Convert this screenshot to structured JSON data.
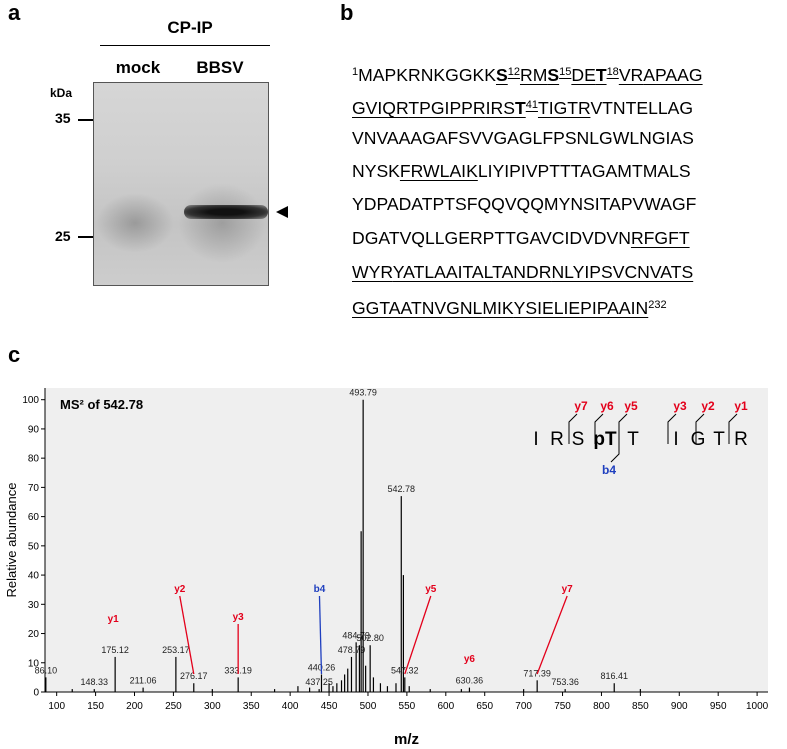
{
  "panel_a": {
    "label": "a",
    "group": "CP-IP",
    "lanes": [
      "mock",
      "BBSV"
    ],
    "unit": "kDa",
    "markers": [
      "35",
      "25"
    ]
  },
  "panel_b": {
    "label": "b",
    "lines": [
      [
        {
          "text": "1",
          "sup": true
        },
        {
          "text": "MAPKRNKGGKK"
        },
        {
          "text": "S",
          "bold": true,
          "underline": true
        },
        {
          "text": "12",
          "sup": true,
          "underline": true
        },
        {
          "text": "RM",
          "underline": true
        },
        {
          "text": "S",
          "bold": true,
          "underline": true
        },
        {
          "text": "15",
          "sup": true,
          "underline": true
        },
        {
          "text": "DE",
          "underline": true
        },
        {
          "text": "T",
          "bold": true,
          "underline": true
        },
        {
          "text": "18",
          "sup": true,
          "underline": true
        },
        {
          "text": "VR",
          "underline": true
        },
        {
          "text": "APAAG",
          "underline": true
        }
      ],
      [
        {
          "text": "GVIQR",
          "underline": true
        },
        {
          "text": "TPGIPPR",
          "underline": true
        },
        {
          "text": "IRS",
          "underline": true
        },
        {
          "text": "T",
          "bold": true,
          "underline": true
        },
        {
          "text": "41",
          "sup": true,
          "underline": true
        },
        {
          "text": "TIGTR",
          "underline": true
        },
        {
          "text": "VTNTELLAG"
        }
      ],
      [
        {
          "text": "VNVAAAGAFSVVGAGLFPSNLGWLNGIAS"
        }
      ],
      [
        {
          "text": "NYSK"
        },
        {
          "text": "FRWLAIK",
          "underline": true
        },
        {
          "text": "LIYIPIVPTTTAGAMTMALS"
        }
      ],
      [
        {
          "text": "YDPADATPTSFQQVQQMYNSITAPVWAGF"
        }
      ],
      [
        {
          "text": "DGATVQLLGERPTTGAVCIDVDVN"
        },
        {
          "text": "RFGFT",
          "underline": true
        }
      ],
      [
        {
          "text": "WYR",
          "underline": true
        },
        {
          "text": "YATLAAITALTANDR",
          "underline": true
        },
        {
          "text": "NLYIPSVCNVATS",
          "underline": true
        }
      ],
      [
        {
          "text": "GGTAATNVGNLMIK",
          "underline": true
        },
        {
          "text": "YSIELIEPIPAAIN",
          "underline": true
        },
        {
          "text": "232",
          "sup": true
        }
      ]
    ]
  },
  "panel_c": {
    "label": "c",
    "peptide": [
      "I",
      "R",
      "S",
      "pT",
      "T",
      "I",
      "G",
      "T",
      "R"
    ],
    "y_ions": [
      "y7",
      "y6",
      "y5",
      "y3",
      "y2",
      "y1"
    ],
    "b_ions": [
      "b4"
    ]
  },
  "chart_data": {
    "type": "stick",
    "title": "MS² of 542.78",
    "xlabel": "m/z",
    "ylabel": "Relative abundance",
    "xlim": [
      85,
      1014
    ],
    "xticks": [
      100,
      150,
      200,
      250,
      300,
      350,
      400,
      450,
      500,
      550,
      600,
      650,
      700,
      750,
      800,
      850,
      900,
      950,
      1000
    ],
    "ylim": [
      0,
      104
    ],
    "yticks": [
      0,
      10,
      20,
      30,
      40,
      50,
      60,
      70,
      80,
      90,
      100
    ],
    "color": "#000000",
    "background": "#efefef",
    "x": [
      86.1,
      120,
      148.33,
      175.12,
      211.06,
      253.17,
      276.17,
      300,
      333.19,
      380,
      410,
      425,
      437.25,
      440.26,
      450,
      455,
      460,
      466,
      470,
      474,
      478.79,
      484.79,
      489,
      491.2,
      493.79,
      497,
      502.8,
      507,
      516,
      525,
      536,
      542.78,
      545.5,
      547.32,
      553,
      580,
      620,
      630.36,
      700,
      717.39,
      753.36,
      816.41,
      850
    ],
    "values": [
      5,
      1,
      1,
      12,
      1.5,
      12,
      3,
      1,
      5,
      1,
      2,
      1.5,
      1,
      6,
      3,
      2,
      3,
      4,
      6,
      8,
      12,
      17,
      16,
      55,
      100,
      9,
      16,
      5,
      3,
      2,
      3,
      67,
      40,
      5,
      2,
      1,
      1,
      1.5,
      1,
      4,
      1,
      3,
      1
    ],
    "x_labels": [
      "86.10",
      null,
      "148.33",
      "175.12",
      "211.06",
      "253.17",
      "276.17",
      null,
      "333.19",
      null,
      null,
      null,
      "437.25",
      "440.26",
      null,
      null,
      null,
      null,
      null,
      null,
      "478.79",
      "484.79",
      null,
      null,
      "493.79",
      null,
      "502.80",
      null,
      null,
      null,
      null,
      "542.78",
      null,
      "547.32",
      null,
      null,
      null,
      "630.36",
      null,
      "717.39",
      "753.36",
      "816.41",
      null
    ],
    "annotations": [
      {
        "text": "y1",
        "color": "#e3001b",
        "mz": 175.12
      },
      {
        "text": "y2",
        "color": "#e3001b",
        "mz": 276.17
      },
      {
        "text": "y3",
        "color": "#e3001b",
        "mz": 333.19
      },
      {
        "text": "b4",
        "color": "#1f3fbf",
        "mz": 440.26
      },
      {
        "text": "y5",
        "color": "#e3001b",
        "mz": 547.32
      },
      {
        "text": "y6",
        "color": "#e3001b",
        "mz": 630.36
      },
      {
        "text": "y7",
        "color": "#e3001b",
        "mz": 717.39
      }
    ]
  }
}
